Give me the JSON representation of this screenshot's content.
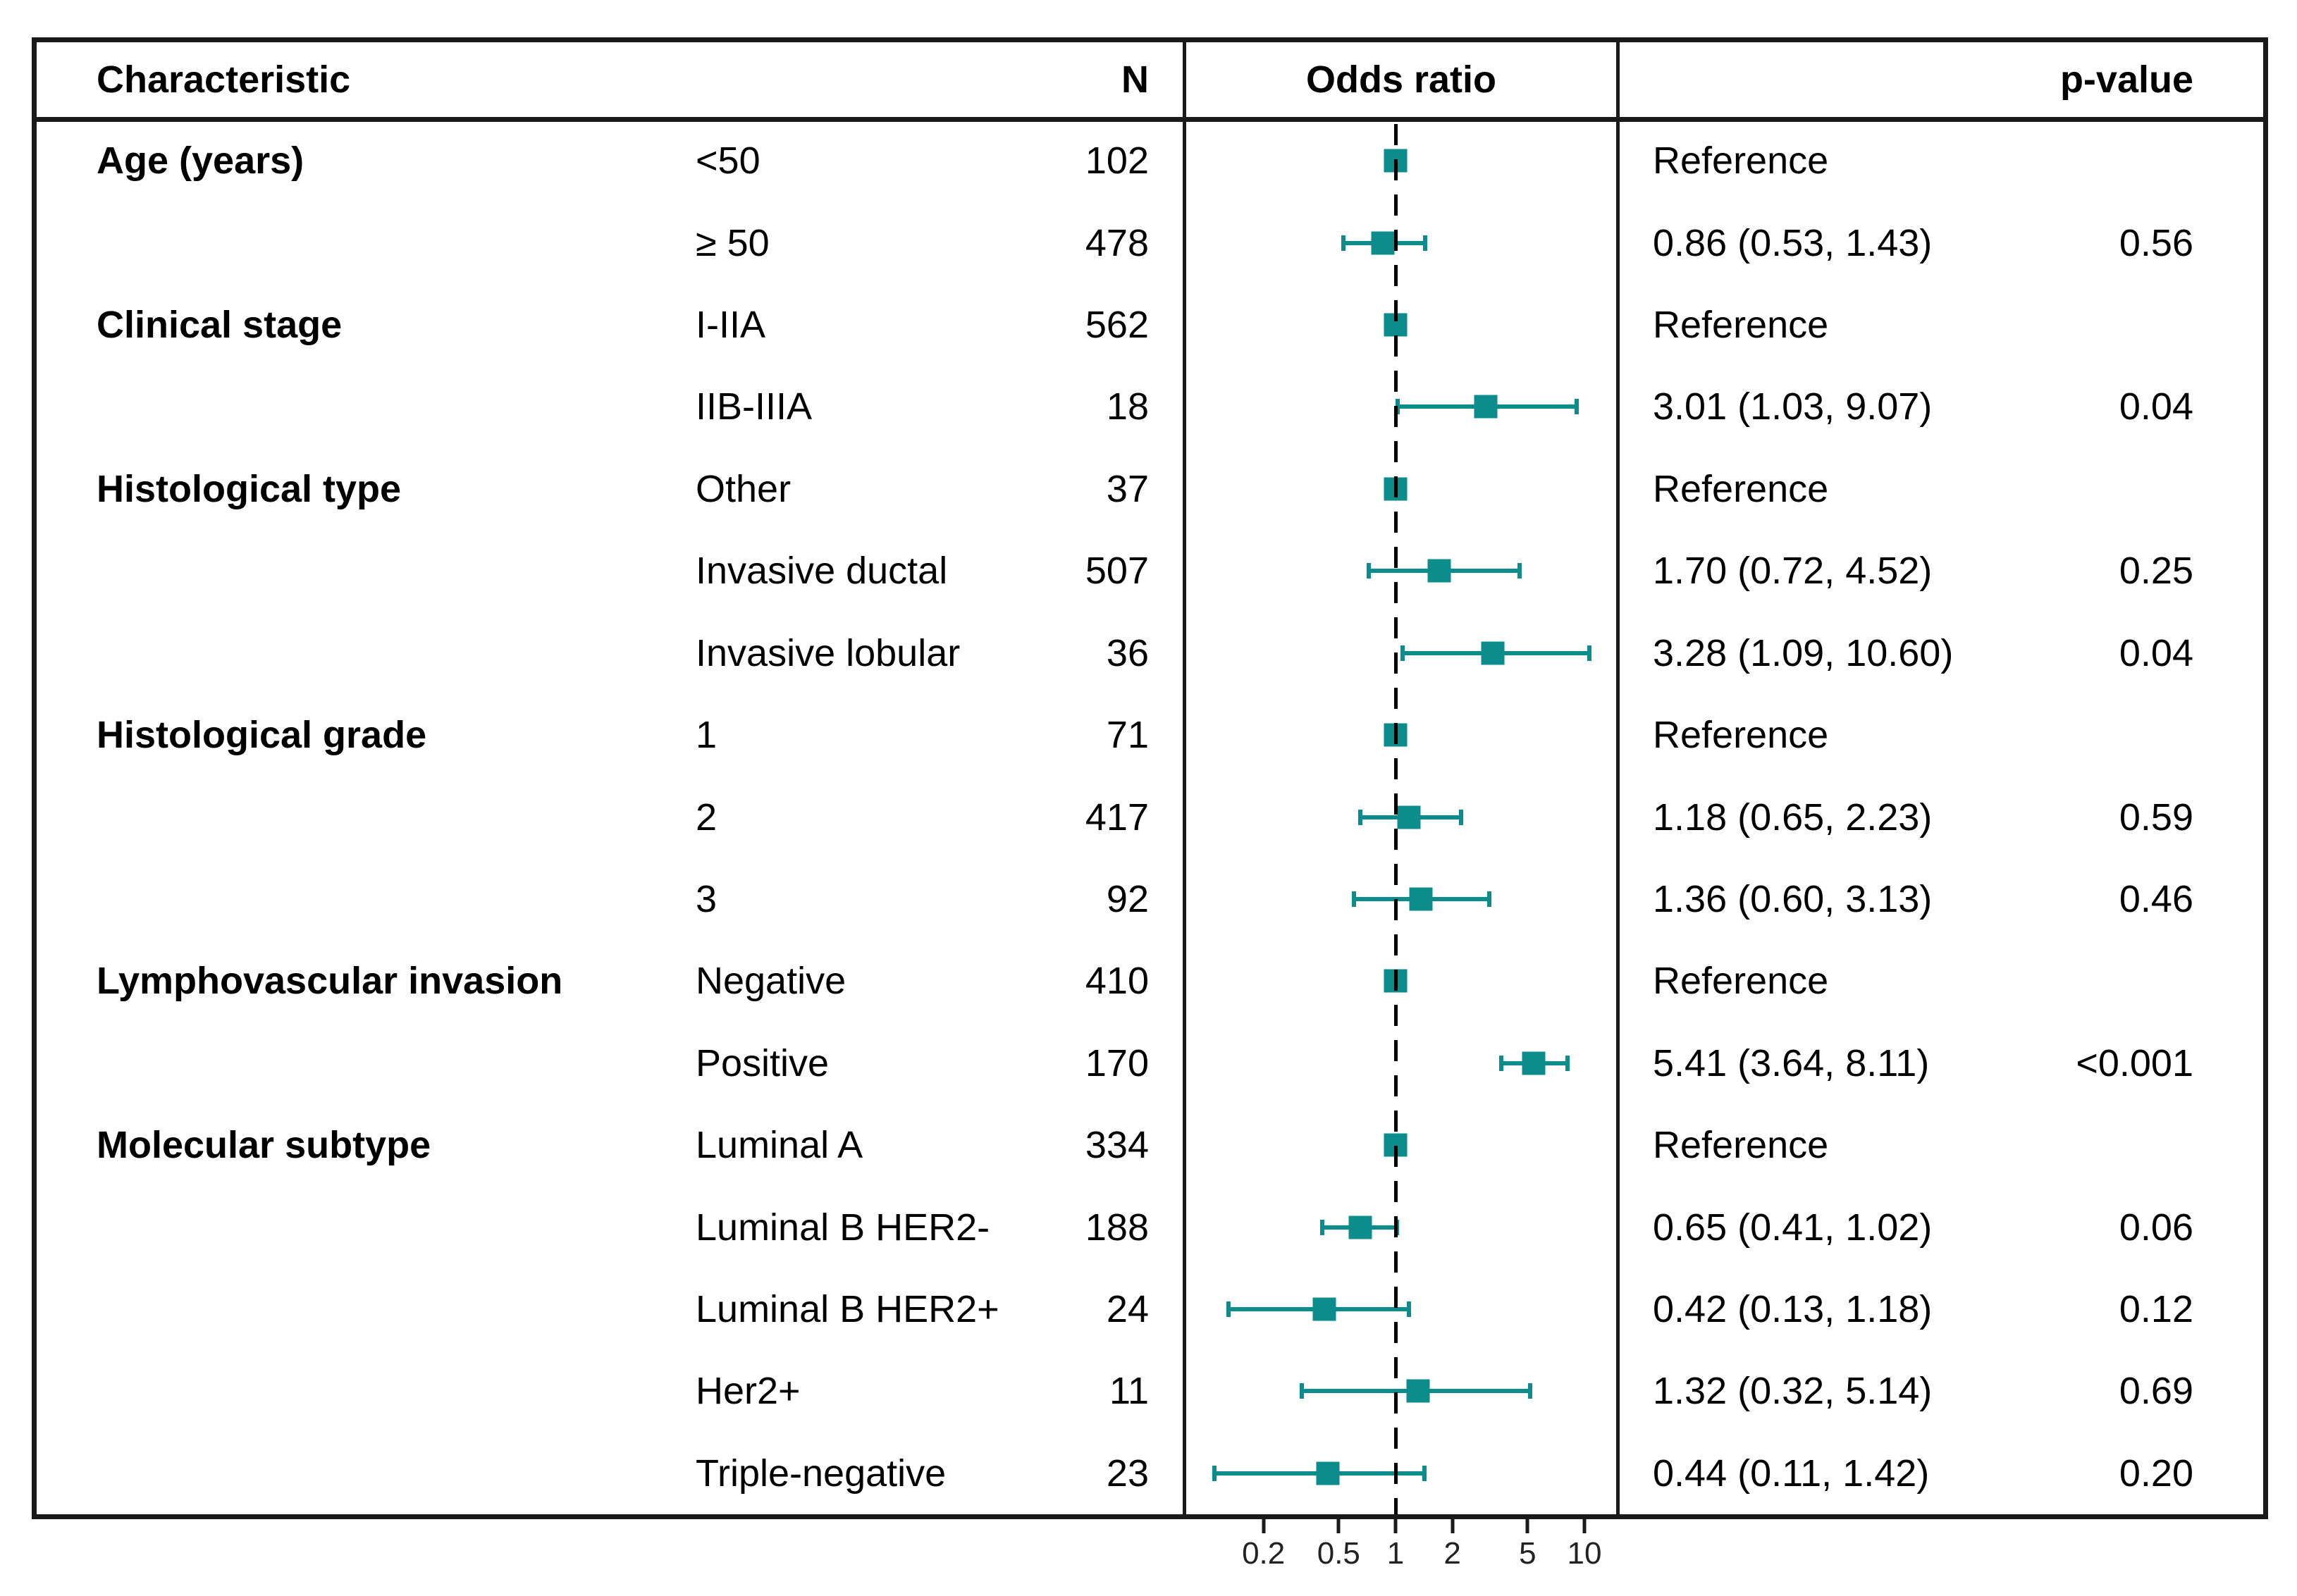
{
  "header": {
    "characteristic": "Characteristic",
    "n": "N",
    "odds_ratio": "Odds ratio",
    "p_value": "p-value"
  },
  "axis": {
    "scale": "log",
    "tick_labels": [
      "0.2",
      "0.5",
      "1",
      "2",
      "5",
      "10"
    ],
    "tick_values": [
      0.2,
      0.5,
      1,
      2,
      5,
      10
    ],
    "reference_value": 1
  },
  "colors": {
    "marker": "#0D8C8C",
    "border": "#1a1a1a",
    "text": "#000000"
  },
  "rows": [
    {
      "group": "Age (years)",
      "level": "<50",
      "n": "102",
      "estimate": "Reference",
      "p": "",
      "ref": true,
      "or": 1,
      "lo": null,
      "hi": null
    },
    {
      "group": "",
      "level": "≥ 50",
      "n": "478",
      "estimate": "0.86 (0.53, 1.43)",
      "p": "0.56",
      "ref": false,
      "or": 0.86,
      "lo": 0.53,
      "hi": 1.43
    },
    {
      "group": "Clinical stage",
      "level": "I-IIA",
      "n": "562",
      "estimate": "Reference",
      "p": "",
      "ref": true,
      "or": 1,
      "lo": null,
      "hi": null
    },
    {
      "group": "",
      "level": "IIB-IIIA",
      "n": "18",
      "estimate": "3.01 (1.03, 9.07)",
      "p": "0.04",
      "ref": false,
      "or": 3.01,
      "lo": 1.03,
      "hi": 9.07
    },
    {
      "group": "Histological type",
      "level": "Other",
      "n": "37",
      "estimate": "Reference",
      "p": "",
      "ref": true,
      "or": 1,
      "lo": null,
      "hi": null
    },
    {
      "group": "",
      "level": "Invasive ductal",
      "n": "507",
      "estimate": "1.70 (0.72, 4.52)",
      "p": "0.25",
      "ref": false,
      "or": 1.7,
      "lo": 0.72,
      "hi": 4.52
    },
    {
      "group": "",
      "level": "Invasive lobular",
      "n": "36",
      "estimate": "3.28 (1.09, 10.60)",
      "p": "0.04",
      "ref": false,
      "or": 3.28,
      "lo": 1.09,
      "hi": 10.6
    },
    {
      "group": "Histological grade",
      "level": "1",
      "n": "71",
      "estimate": "Reference",
      "p": "",
      "ref": true,
      "or": 1,
      "lo": null,
      "hi": null
    },
    {
      "group": "",
      "level": "2",
      "n": "417",
      "estimate": "1.18 (0.65, 2.23)",
      "p": "0.59",
      "ref": false,
      "or": 1.18,
      "lo": 0.65,
      "hi": 2.23
    },
    {
      "group": "",
      "level": "3",
      "n": "92",
      "estimate": "1.36 (0.60, 3.13)",
      "p": "0.46",
      "ref": false,
      "or": 1.36,
      "lo": 0.6,
      "hi": 3.13
    },
    {
      "group": "Lymphovascular invasion",
      "level": "Negative",
      "n": "410",
      "estimate": "Reference",
      "p": "",
      "ref": true,
      "or": 1,
      "lo": null,
      "hi": null
    },
    {
      "group": "",
      "level": "Positive",
      "n": "170",
      "estimate": "5.41 (3.64, 8.11)",
      "p": "<0.001",
      "ref": false,
      "or": 5.41,
      "lo": 3.64,
      "hi": 8.11
    },
    {
      "group": "Molecular subtype",
      "level": "Luminal A",
      "n": "334",
      "estimate": "Reference",
      "p": "",
      "ref": true,
      "or": 1,
      "lo": null,
      "hi": null
    },
    {
      "group": "",
      "level": "Luminal B HER2-",
      "n": "188",
      "estimate": "0.65 (0.41, 1.02)",
      "p": "0.06",
      "ref": false,
      "or": 0.65,
      "lo": 0.41,
      "hi": 1.02
    },
    {
      "group": "",
      "level": "Luminal B HER2+",
      "n": "24",
      "estimate": "0.42 (0.13, 1.18)",
      "p": "0.12",
      "ref": false,
      "or": 0.42,
      "lo": 0.13,
      "hi": 1.18
    },
    {
      "group": "",
      "level": "Her2+",
      "n": "11",
      "estimate": "1.32 (0.32, 5.14)",
      "p": "0.69",
      "ref": false,
      "or": 1.32,
      "lo": 0.32,
      "hi": 5.14
    },
    {
      "group": "",
      "level": "Triple-negative",
      "n": "23",
      "estimate": "0.44 (0.11, 1.42)",
      "p": "0.20",
      "ref": false,
      "or": 0.44,
      "lo": 0.11,
      "hi": 1.42
    }
  ],
  "chart_data": {
    "type": "scatter",
    "variant": "forest-plot",
    "title": "Odds ratio",
    "x_scale": "log",
    "x_ticks": [
      0.2,
      0.5,
      1,
      2,
      5,
      10
    ],
    "x_range": [
      0.09,
      15
    ],
    "reference_line": 1,
    "legend_position": "none",
    "grid": false,
    "points": [
      {
        "label": "Age (years) <50",
        "or": 1,
        "lo": null,
        "hi": null,
        "ref": true,
        "p": null
      },
      {
        "label": "Age (years) ≥ 50",
        "or": 0.86,
        "lo": 0.53,
        "hi": 1.43,
        "ref": false,
        "p": "0.56"
      },
      {
        "label": "Clinical stage I-IIA",
        "or": 1,
        "lo": null,
        "hi": null,
        "ref": true,
        "p": null
      },
      {
        "label": "Clinical stage IIB-IIIA",
        "or": 3.01,
        "lo": 1.03,
        "hi": 9.07,
        "ref": false,
        "p": "0.04"
      },
      {
        "label": "Histological type Other",
        "or": 1,
        "lo": null,
        "hi": null,
        "ref": true,
        "p": null
      },
      {
        "label": "Histological type Invasive ductal",
        "or": 1.7,
        "lo": 0.72,
        "hi": 4.52,
        "ref": false,
        "p": "0.25"
      },
      {
        "label": "Histological type Invasive lobular",
        "or": 3.28,
        "lo": 1.09,
        "hi": 10.6,
        "ref": false,
        "p": "0.04"
      },
      {
        "label": "Histological grade 1",
        "or": 1,
        "lo": null,
        "hi": null,
        "ref": true,
        "p": null
      },
      {
        "label": "Histological grade 2",
        "or": 1.18,
        "lo": 0.65,
        "hi": 2.23,
        "ref": false,
        "p": "0.59"
      },
      {
        "label": "Histological grade 3",
        "or": 1.36,
        "lo": 0.6,
        "hi": 3.13,
        "ref": false,
        "p": "0.46"
      },
      {
        "label": "Lymphovascular invasion Negative",
        "or": 1,
        "lo": null,
        "hi": null,
        "ref": true,
        "p": null
      },
      {
        "label": "Lymphovascular invasion Positive",
        "or": 5.41,
        "lo": 3.64,
        "hi": 8.11,
        "ref": false,
        "p": "<0.001"
      },
      {
        "label": "Molecular subtype Luminal A",
        "or": 1,
        "lo": null,
        "hi": null,
        "ref": true,
        "p": null
      },
      {
        "label": "Molecular subtype Luminal B HER2-",
        "or": 0.65,
        "lo": 0.41,
        "hi": 1.02,
        "ref": false,
        "p": "0.06"
      },
      {
        "label": "Molecular subtype Luminal B HER2+",
        "or": 0.42,
        "lo": 0.13,
        "hi": 1.18,
        "ref": false,
        "p": "0.12"
      },
      {
        "label": "Molecular subtype Her2+",
        "or": 1.32,
        "lo": 0.32,
        "hi": 5.14,
        "ref": false,
        "p": "0.69"
      },
      {
        "label": "Molecular subtype Triple-negative",
        "or": 0.44,
        "lo": 0.11,
        "hi": 1.42,
        "ref": false,
        "p": "0.20"
      }
    ]
  }
}
